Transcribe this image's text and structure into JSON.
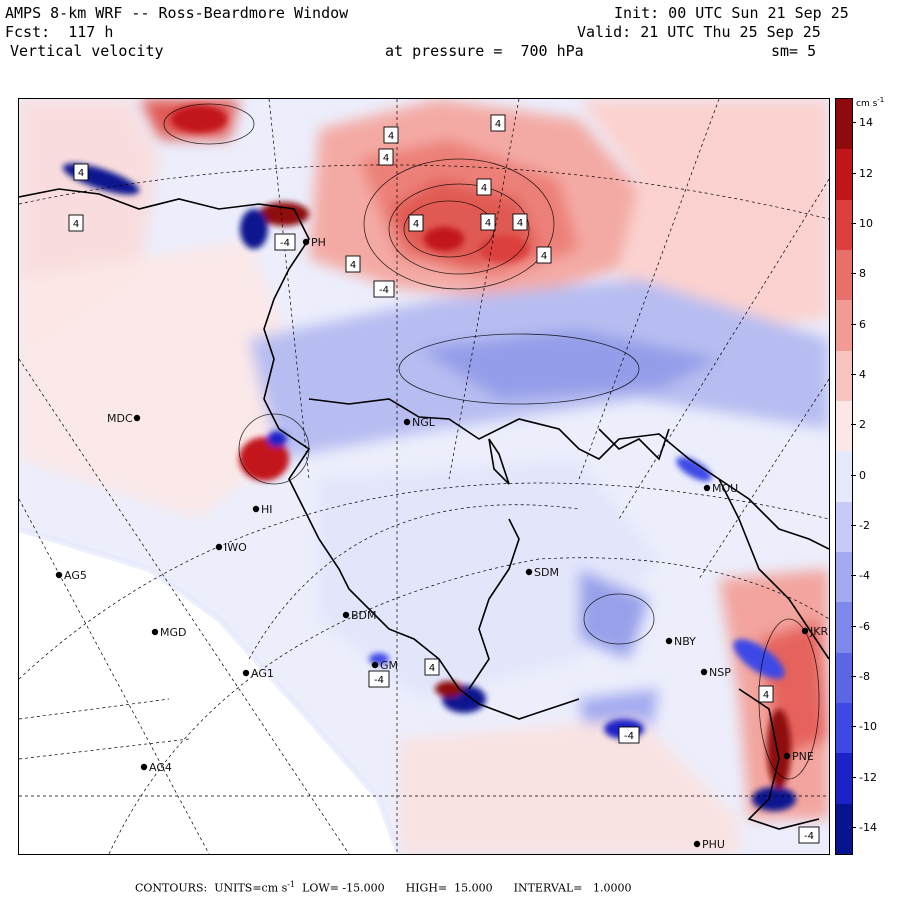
{
  "header": {
    "model": "AMPS 8-km WRF -- Ross-Beardmore Window",
    "init": "Init: 00 UTC Sun 21 Sep 25",
    "forecast": "Fcst:  117 h",
    "valid": "Valid: 21 UTC Thu 25 Sep 25",
    "field": "Vertical velocity",
    "pressure": "at pressure =  700 hPa",
    "smoothing": "sm= 5"
  },
  "colorbar": {
    "units_label": "cm s",
    "units_exp": "-1",
    "ticks": [
      "14",
      "12",
      "10",
      "8",
      "6",
      "4",
      "2",
      "0",
      "-2",
      "-4",
      "-6",
      "-8",
      "-10",
      "-12",
      "-14"
    ],
    "min": -15,
    "max": 15,
    "colors": [
      "#07148f",
      "#1b22c6",
      "#3c49e6",
      "#5a66e3",
      "#7e88ea",
      "#a3aaf0",
      "#c5caf6",
      "#e6e8fc",
      "#fde7e6",
      "#f8c4c0",
      "#f19b94",
      "#e8706a",
      "#dc3f3d",
      "#c2151a",
      "#8e0a0c"
    ]
  },
  "stations": [
    {
      "name": "MDC"
    },
    {
      "name": "NGL"
    },
    {
      "name": "MOU"
    },
    {
      "name": "IWO"
    },
    {
      "name": "AG5"
    },
    {
      "name": "SDM"
    },
    {
      "name": "MGD"
    },
    {
      "name": "BDM"
    },
    {
      "name": "AG1"
    },
    {
      "name": "NBY"
    },
    {
      "name": "NSP"
    },
    {
      "name": "AG4"
    },
    {
      "name": "PNE"
    },
    {
      "name": "PHU"
    },
    {
      "name": "PH"
    },
    {
      "name": "HI"
    },
    {
      "name": "GM"
    },
    {
      "name": "JKR"
    }
  ],
  "contour_boxes": [
    {
      "text": "4"
    },
    {
      "text": "4"
    },
    {
      "text": "4"
    },
    {
      "text": "4"
    },
    {
      "text": "4"
    },
    {
      "text": "4"
    },
    {
      "text": "4"
    },
    {
      "text": "4"
    },
    {
      "text": "4"
    },
    {
      "text": "4"
    },
    {
      "text": "4"
    },
    {
      "text": "-4"
    },
    {
      "text": "-4"
    },
    {
      "text": "-4"
    },
    {
      "text": "4"
    },
    {
      "text": "4"
    },
    {
      "text": "-4"
    },
    {
      "text": "-4"
    }
  ],
  "footer": {
    "contours": "CONTOURS:  UNITS=cm s",
    "units_exp": "-1",
    "low": "LOW= -15.000",
    "high": "HIGH=  15.000",
    "interval": "INTERVAL=   1.0000"
  }
}
